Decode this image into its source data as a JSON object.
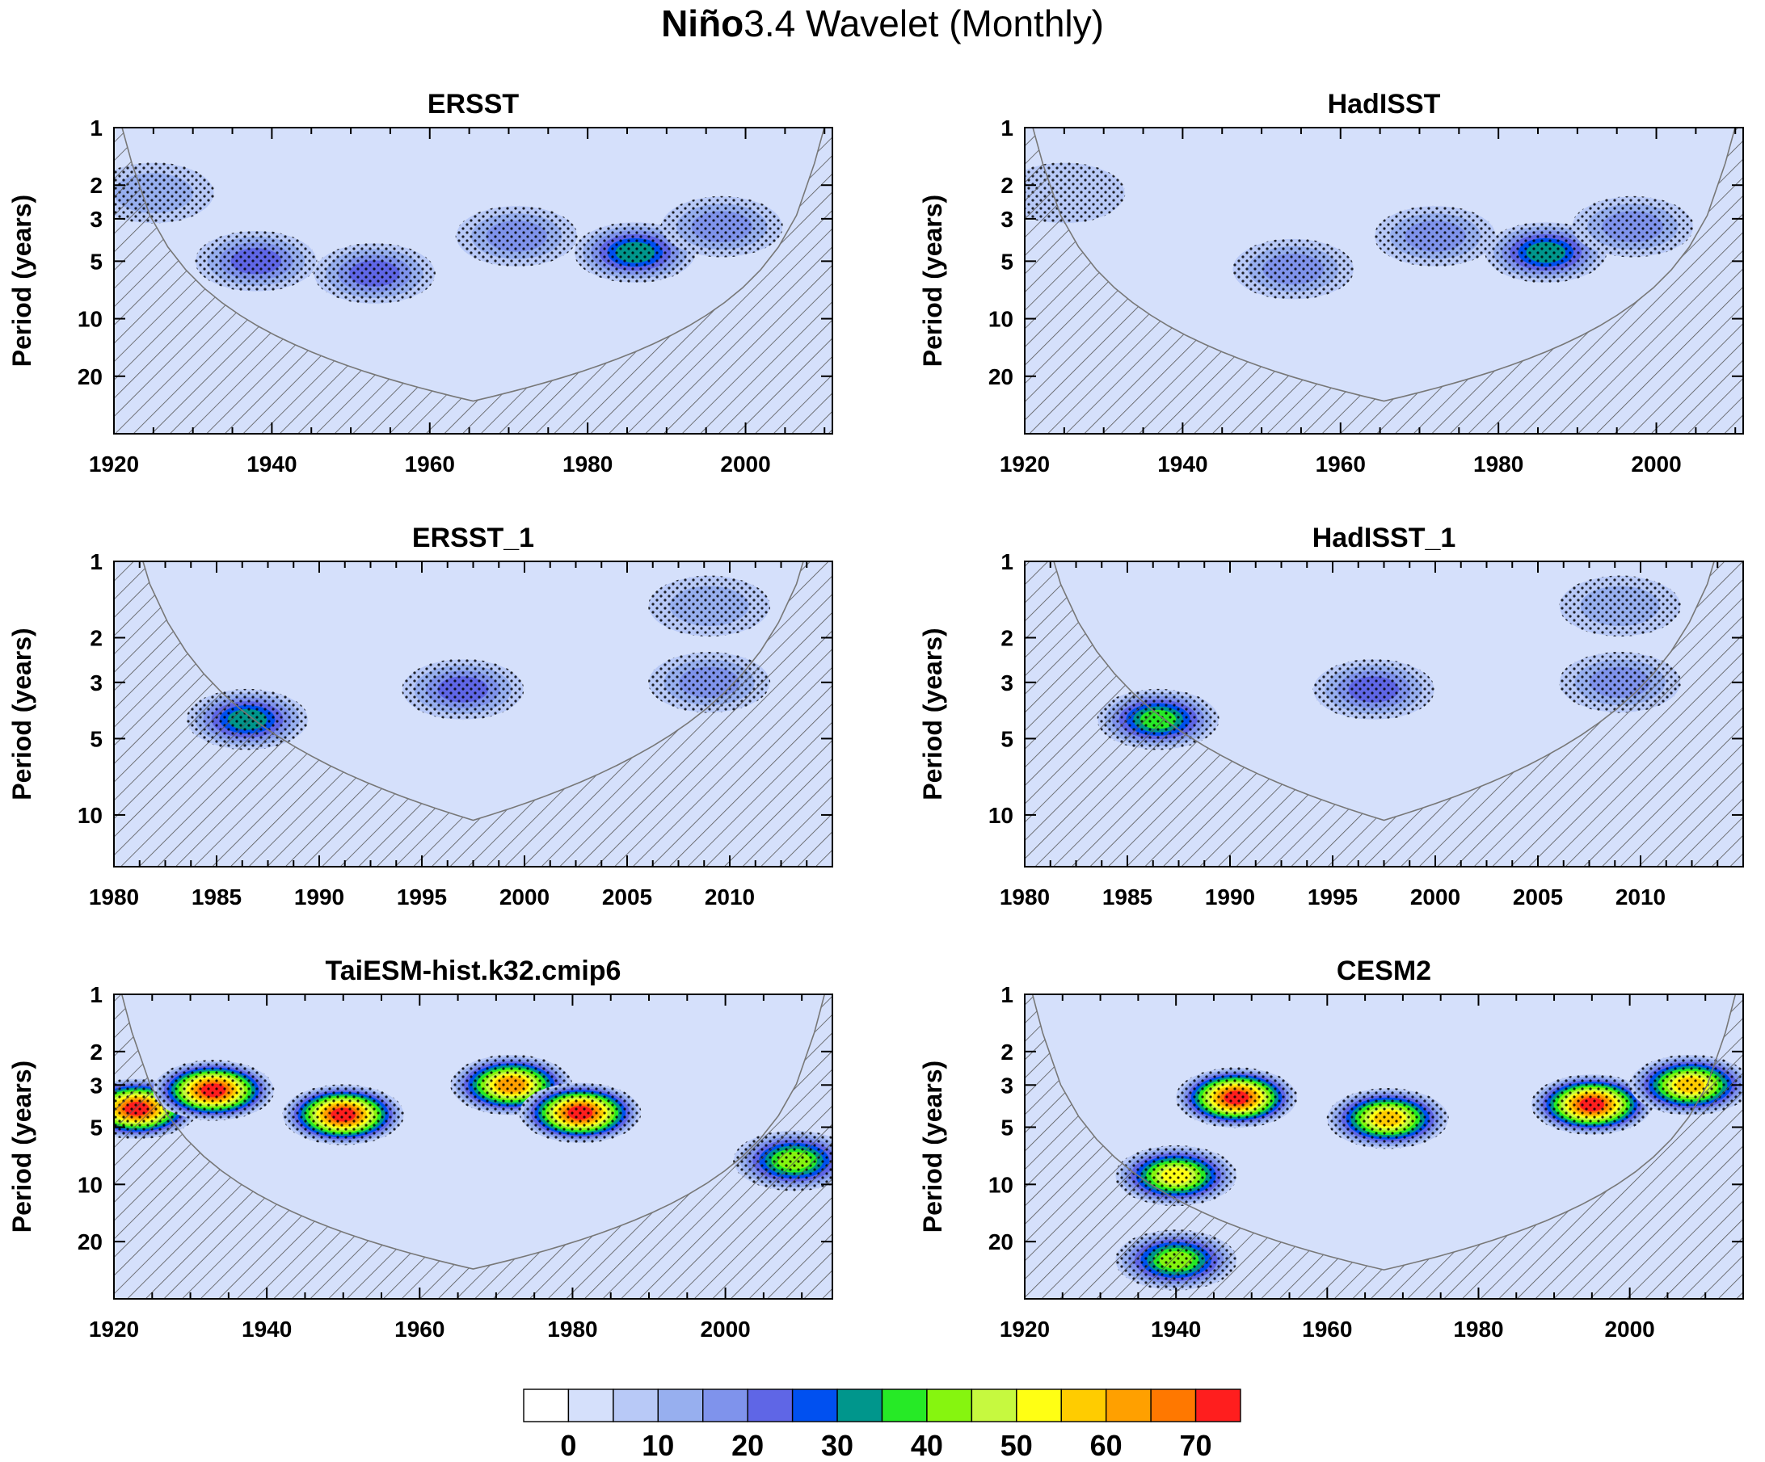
{
  "figure": {
    "title_bold": "Niño",
    "title_rest": "3.4 Wavelet (Monthly)"
  },
  "colors": {
    "levels": [
      "#ffffff",
      "#d5e0fb",
      "#b8c9f7",
      "#97afef",
      "#7f93ec",
      "#5f66e6",
      "#0050f0",
      "#00968c",
      "#26ea26",
      "#86f50f",
      "#c6f93f",
      "#ffff14",
      "#ffcc00",
      "#ffa000",
      "#ff7800",
      "#ff1e1e"
    ],
    "hatch": "#555555",
    "stipple": "#000000",
    "coi_line": "#777777"
  },
  "colorbar": {
    "labels": [
      "0",
      "10",
      "20",
      "30",
      "40",
      "50",
      "60",
      "70"
    ],
    "label_bins": [
      1,
      3,
      5,
      7,
      9,
      11,
      13,
      15
    ]
  },
  "chart_data": [
    {
      "type": "heatmap",
      "title": "ERSST",
      "ylabel": "Period (years)",
      "y_scale": "log",
      "y_ticks": [
        "1",
        "2",
        "3",
        "5",
        "10",
        "20"
      ],
      "x_ticks": [
        "1920",
        "1940",
        "1960",
        "1980",
        "2000"
      ],
      "xlim": [
        1920,
        2011
      ],
      "ylim": [
        1,
        40
      ],
      "features": [
        {
          "x": 1925,
          "p": 2.2,
          "level": 3
        },
        {
          "x": 1938,
          "p": 5.0,
          "level": 5
        },
        {
          "x": 1953,
          "p": 5.8,
          "level": 5
        },
        {
          "x": 1971,
          "p": 3.7,
          "level": 4
        },
        {
          "x": 1986,
          "p": 4.5,
          "level": 7
        },
        {
          "x": 1997,
          "p": 3.3,
          "level": 4
        }
      ]
    },
    {
      "type": "heatmap",
      "title": "HadISST",
      "ylabel": "Period (years)",
      "y_scale": "log",
      "y_ticks": [
        "1",
        "2",
        "3",
        "5",
        "10",
        "20"
      ],
      "x_ticks": [
        "1920",
        "1940",
        "1960",
        "1980",
        "2000"
      ],
      "xlim": [
        1920,
        2011
      ],
      "ylim": [
        1,
        40
      ],
      "features": [
        {
          "x": 1925,
          "p": 2.2,
          "level": 2
        },
        {
          "x": 1954,
          "p": 5.5,
          "level": 4
        },
        {
          "x": 1972,
          "p": 3.7,
          "level": 4
        },
        {
          "x": 1986,
          "p": 4.5,
          "level": 7
        },
        {
          "x": 1997,
          "p": 3.3,
          "level": 4
        }
      ]
    },
    {
      "type": "heatmap",
      "title": "ERSST_1",
      "ylabel": "Period (years)",
      "y_scale": "log",
      "y_ticks": [
        "1",
        "2",
        "3",
        "5",
        "10"
      ],
      "x_ticks": [
        "1980",
        "1985",
        "1990",
        "1995",
        "2000",
        "2005",
        "2010"
      ],
      "xlim": [
        1980,
        2015
      ],
      "ylim": [
        1,
        16
      ],
      "features": [
        {
          "x": 1986.5,
          "p": 4.2,
          "level": 7
        },
        {
          "x": 1997,
          "p": 3.2,
          "level": 5
        },
        {
          "x": 2009,
          "p": 3.0,
          "level": 4
        },
        {
          "x": 2009,
          "p": 1.5,
          "level": 3
        }
      ]
    },
    {
      "type": "heatmap",
      "title": "HadISST_1",
      "ylabel": "Period (years)",
      "y_scale": "log",
      "y_ticks": [
        "1",
        "2",
        "3",
        "5",
        "10"
      ],
      "x_ticks": [
        "1980",
        "1985",
        "1990",
        "1995",
        "2000",
        "2005",
        "2010"
      ],
      "xlim": [
        1980,
        2015
      ],
      "ylim": [
        1,
        16
      ],
      "features": [
        {
          "x": 1986.5,
          "p": 4.2,
          "level": 8
        },
        {
          "x": 1997,
          "p": 3.2,
          "level": 5
        },
        {
          "x": 2009,
          "p": 3.0,
          "level": 4
        },
        {
          "x": 2009,
          "p": 1.5,
          "level": 3
        }
      ]
    },
    {
      "type": "heatmap",
      "title": "TaiESM-hist.k32.cmip6",
      "ylabel": "Period (years)",
      "y_scale": "log",
      "y_ticks": [
        "1",
        "2",
        "3",
        "5",
        "10",
        "20"
      ],
      "x_ticks": [
        "1920",
        "1940",
        "1960",
        "1980",
        "2000"
      ],
      "xlim": [
        1920,
        2014
      ],
      "ylim": [
        1,
        40
      ],
      "features": [
        {
          "x": 1923,
          "p": 4.0,
          "level": 15
        },
        {
          "x": 1933,
          "p": 3.2,
          "level": 15
        },
        {
          "x": 1950,
          "p": 4.3,
          "level": 15
        },
        {
          "x": 1972,
          "p": 3.0,
          "level": 13
        },
        {
          "x": 1981,
          "p": 4.2,
          "level": 15
        },
        {
          "x": 2009,
          "p": 7.5,
          "level": 9
        }
      ]
    },
    {
      "type": "heatmap",
      "title": "CESM2",
      "ylabel": "Period (years)",
      "y_scale": "log",
      "y_ticks": [
        "1",
        "2",
        "3",
        "5",
        "10",
        "20"
      ],
      "x_ticks": [
        "1920",
        "1940",
        "1960",
        "1980",
        "2000"
      ],
      "xlim": [
        1920,
        2015
      ],
      "ylim": [
        1,
        40
      ],
      "features": [
        {
          "x": 1948,
          "p": 3.5,
          "level": 15
        },
        {
          "x": 1940,
          "p": 9.0,
          "level": 11
        },
        {
          "x": 1995,
          "p": 3.8,
          "level": 15
        },
        {
          "x": 1968,
          "p": 4.5,
          "level": 12
        },
        {
          "x": 1940,
          "p": 25,
          "level": 9
        },
        {
          "x": 2008,
          "p": 3.0,
          "level": 12
        }
      ]
    }
  ]
}
